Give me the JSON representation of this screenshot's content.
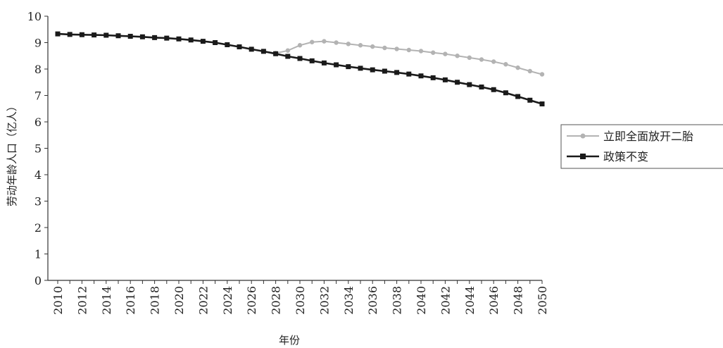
{
  "chart_data": {
    "type": "line",
    "xlabel": "年份",
    "ylabel": "劳动年龄人口（亿人）",
    "ylim": [
      0,
      10
    ],
    "yticks": [
      0,
      1,
      2,
      3,
      4,
      5,
      6,
      7,
      8,
      9,
      10
    ],
    "xlim": [
      2010,
      2050
    ],
    "xticks": [
      2010,
      2012,
      2014,
      2016,
      2018,
      2020,
      2022,
      2024,
      2026,
      2028,
      2030,
      2032,
      2034,
      2036,
      2038,
      2040,
      2042,
      2044,
      2046,
      2048,
      2050
    ],
    "legend_position": "right",
    "grid": false,
    "series": [
      {
        "name": "立即全面放开二胎",
        "color": "#b3b3b3",
        "marker": "circle",
        "x": [
          2010,
          2011,
          2012,
          2013,
          2014,
          2015,
          2016,
          2017,
          2018,
          2019,
          2020,
          2021,
          2022,
          2023,
          2024,
          2025,
          2026,
          2027,
          2028,
          2029,
          2030,
          2031,
          2032,
          2033,
          2034,
          2035,
          2036,
          2037,
          2038,
          2039,
          2040,
          2041,
          2042,
          2043,
          2044,
          2045,
          2046,
          2047,
          2048,
          2049,
          2050
        ],
        "values": [
          9.33,
          9.31,
          9.3,
          9.29,
          9.28,
          9.26,
          9.24,
          9.22,
          9.19,
          9.17,
          9.14,
          9.1,
          9.05,
          9.0,
          8.92,
          8.84,
          8.75,
          8.67,
          8.6,
          8.7,
          8.9,
          9.02,
          9.05,
          9.0,
          8.95,
          8.9,
          8.85,
          8.8,
          8.76,
          8.72,
          8.68,
          8.62,
          8.57,
          8.5,
          8.43,
          8.36,
          8.28,
          8.18,
          8.05,
          7.92,
          7.8
        ]
      },
      {
        "name": "政策不变",
        "color": "#1a1a1a",
        "marker": "square",
        "x": [
          2010,
          2011,
          2012,
          2013,
          2014,
          2015,
          2016,
          2017,
          2018,
          2019,
          2020,
          2021,
          2022,
          2023,
          2024,
          2025,
          2026,
          2027,
          2028,
          2029,
          2030,
          2031,
          2032,
          2033,
          2034,
          2035,
          2036,
          2037,
          2038,
          2039,
          2040,
          2041,
          2042,
          2043,
          2044,
          2045,
          2046,
          2047,
          2048,
          2049,
          2050
        ],
        "values": [
          9.33,
          9.31,
          9.3,
          9.29,
          9.28,
          9.26,
          9.24,
          9.22,
          9.19,
          9.17,
          9.14,
          9.1,
          9.05,
          9.0,
          8.92,
          8.84,
          8.75,
          8.67,
          8.58,
          8.48,
          8.4,
          8.31,
          8.23,
          8.16,
          8.09,
          8.03,
          7.97,
          7.92,
          7.87,
          7.81,
          7.74,
          7.67,
          7.59,
          7.5,
          7.41,
          7.32,
          7.22,
          7.1,
          6.96,
          6.82,
          6.68
        ]
      }
    ]
  }
}
